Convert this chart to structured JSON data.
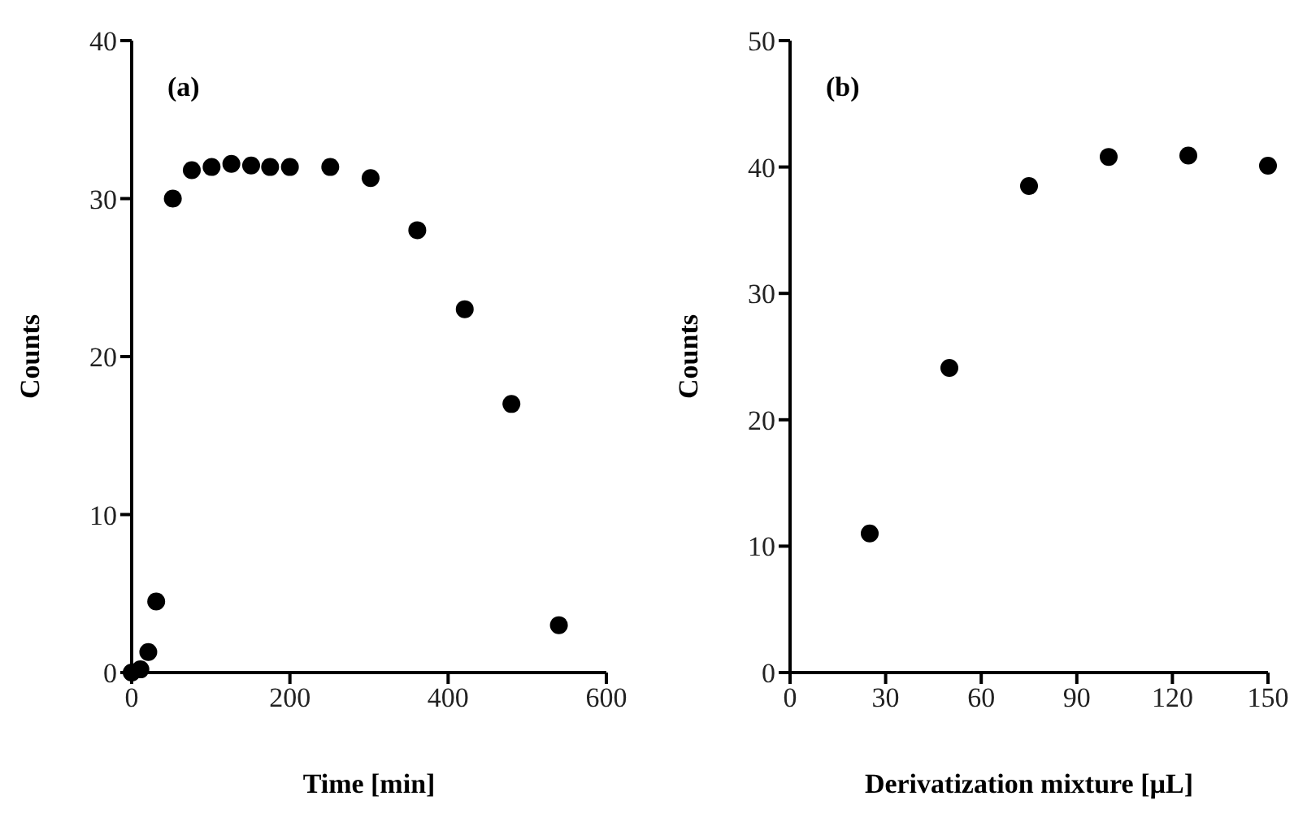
{
  "chart_data": [
    {
      "type": "scatter",
      "xlabel": "Time [min]",
      "ylabel": "Counts",
      "annotations": [
        "(a)"
      ],
      "marker": "circle",
      "grid": false,
      "x": [
        0,
        11,
        21,
        31,
        52,
        76,
        101,
        126,
        151,
        175,
        200,
        251,
        302,
        361,
        421,
        480,
        540
      ],
      "series": [
        {
          "color": "#000000",
          "values": [
            0,
            0.2,
            1.3,
            4.5,
            30,
            31.8,
            32,
            32.2,
            32.1,
            32,
            32,
            32,
            31.3,
            28,
            23,
            17,
            3
          ]
        }
      ],
      "xlim": [
        0,
        600
      ],
      "xticks": [
        0,
        200,
        400,
        600
      ],
      "ylim": [
        0,
        40
      ],
      "yticks": [
        0,
        10,
        20,
        30,
        40
      ]
    },
    {
      "type": "scatter",
      "xlabel": "Derivatization mixture [µL]",
      "ylabel": "Counts",
      "annotations": [
        "(b)"
      ],
      "marker": "circle",
      "grid": false,
      "x": [
        25,
        50,
        75,
        100,
        125,
        150
      ],
      "series": [
        {
          "color": "#000000",
          "values": [
            11,
            24.1,
            38.5,
            40.8,
            40.9,
            40.1
          ]
        }
      ],
      "xlim": [
        0,
        150
      ],
      "xticks": [
        0,
        30,
        60,
        90,
        120,
        150
      ],
      "ylim": [
        0,
        50
      ],
      "yticks": [
        0,
        10,
        20,
        30,
        40,
        50
      ]
    }
  ]
}
